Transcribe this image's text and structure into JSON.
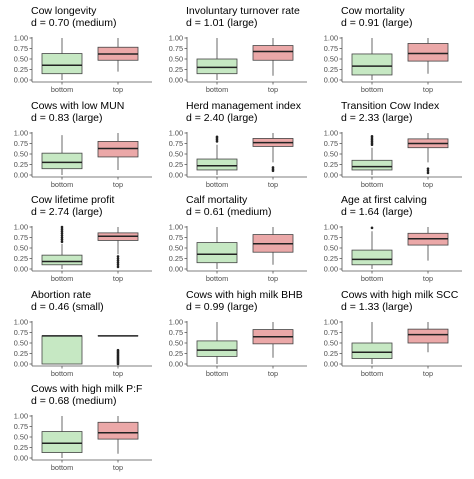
{
  "chart_data": [
    {
      "type": "boxplot",
      "title": "Cow longevity",
      "subtitle": "d = 0.70 (medium)",
      "categories": [
        "bottom",
        "top"
      ],
      "ylim": [
        0,
        1
      ],
      "yticks": [
        "0.00",
        "0.25",
        "0.50",
        "0.75",
        "1.00"
      ],
      "boxes": [
        {
          "name": "bottom",
          "min": 0.0,
          "q1": 0.15,
          "median": 0.35,
          "q3": 0.63,
          "max": 1.0,
          "outliers": []
        },
        {
          "name": "top",
          "min": 0.2,
          "q1": 0.47,
          "median": 0.62,
          "q3": 0.78,
          "max": 1.0,
          "outliers": []
        }
      ]
    },
    {
      "type": "boxplot",
      "title": "Involuntary turnover rate",
      "subtitle": "d = 1.01 (large)",
      "categories": [
        "bottom",
        "top"
      ],
      "ylim": [
        0,
        1
      ],
      "yticks": [
        "0.00",
        "0.25",
        "0.50",
        "0.75",
        "1.00"
      ],
      "boxes": [
        {
          "name": "bottom",
          "min": 0.0,
          "q1": 0.15,
          "median": 0.3,
          "q3": 0.5,
          "max": 1.0,
          "outliers": []
        },
        {
          "name": "top",
          "min": 0.1,
          "q1": 0.47,
          "median": 0.68,
          "q3": 0.82,
          "max": 1.0,
          "outliers": []
        }
      ]
    },
    {
      "type": "boxplot",
      "title": "Cow mortality",
      "subtitle": "d = 0.91 (large)",
      "categories": [
        "bottom",
        "top"
      ],
      "ylim": [
        0,
        1
      ],
      "yticks": [
        "0.00",
        "0.25",
        "0.50",
        "0.75",
        "1.00"
      ],
      "boxes": [
        {
          "name": "bottom",
          "min": 0.0,
          "q1": 0.12,
          "median": 0.33,
          "q3": 0.62,
          "max": 1.0,
          "outliers": []
        },
        {
          "name": "top",
          "min": 0.15,
          "q1": 0.45,
          "median": 0.63,
          "q3": 0.87,
          "max": 1.0,
          "outliers": []
        }
      ]
    },
    {
      "type": "boxplot",
      "title": "Cows with low MUN",
      "subtitle": "d = 0.83 (large)",
      "categories": [
        "bottom",
        "top"
      ],
      "ylim": [
        0,
        1
      ],
      "yticks": [
        "0.00",
        "0.25",
        "0.50",
        "0.75",
        "1.00"
      ],
      "boxes": [
        {
          "name": "bottom",
          "min": 0.0,
          "q1": 0.15,
          "median": 0.3,
          "q3": 0.52,
          "max": 0.95,
          "outliers": []
        },
        {
          "name": "top",
          "min": 0.12,
          "q1": 0.43,
          "median": 0.63,
          "q3": 0.8,
          "max": 1.0,
          "outliers": []
        }
      ]
    },
    {
      "type": "boxplot",
      "title": "Herd management index",
      "subtitle": "d = 2.40 (large)",
      "categories": [
        "bottom",
        "top"
      ],
      "ylim": [
        0,
        1
      ],
      "yticks": [
        "0.00",
        "0.25",
        "0.50",
        "0.75",
        "1.00"
      ],
      "boxes": [
        {
          "name": "bottom",
          "min": 0.0,
          "q1": 0.12,
          "median": 0.22,
          "q3": 0.38,
          "max": 0.72,
          "outliers": [
            0.8,
            0.84,
            0.88,
            0.91
          ]
        },
        {
          "name": "top",
          "min": 0.3,
          "q1": 0.68,
          "median": 0.77,
          "q3": 0.87,
          "max": 1.0,
          "outliers": [
            0.1,
            0.14,
            0.18
          ]
        }
      ]
    },
    {
      "type": "boxplot",
      "title": "Transition Cow Index",
      "subtitle": "d = 2.33 (large)",
      "categories": [
        "bottom",
        "top"
      ],
      "ylim": [
        0,
        1
      ],
      "yticks": [
        "0.00",
        "0.25",
        "0.50",
        "0.75",
        "1.00"
      ],
      "boxes": [
        {
          "name": "bottom",
          "min": 0.0,
          "q1": 0.12,
          "median": 0.2,
          "q3": 0.35,
          "max": 0.65,
          "outliers": [
            0.72,
            0.76,
            0.8,
            0.84,
            0.88,
            0.92
          ]
        },
        {
          "name": "top",
          "min": 0.3,
          "q1": 0.65,
          "median": 0.75,
          "q3": 0.86,
          "max": 1.0,
          "outliers": [
            0.05,
            0.1,
            0.15
          ]
        }
      ]
    },
    {
      "type": "boxplot",
      "title": "Cow lifetime profit",
      "subtitle": "d = 2.74 (large)",
      "categories": [
        "bottom",
        "top"
      ],
      "ylim": [
        0,
        1
      ],
      "yticks": [
        "0.00",
        "0.25",
        "0.50",
        "0.75",
        "1.00"
      ],
      "boxes": [
        {
          "name": "bottom",
          "min": 0.0,
          "q1": 0.1,
          "median": 0.18,
          "q3": 0.33,
          "max": 0.6,
          "outliers": [
            0.65,
            0.7,
            0.75,
            0.8,
            0.85,
            0.9,
            0.95,
            1.0
          ]
        },
        {
          "name": "top",
          "min": 0.35,
          "q1": 0.68,
          "median": 0.78,
          "q3": 0.86,
          "max": 1.0,
          "outliers": [
            0.05,
            0.1,
            0.15,
            0.2,
            0.25,
            0.3
          ]
        }
      ]
    },
    {
      "type": "boxplot",
      "title": "Calf mortality",
      "subtitle": "d = 0.61 (medium)",
      "categories": [
        "bottom",
        "top"
      ],
      "ylim": [
        0,
        1
      ],
      "yticks": [
        "0.00",
        "0.25",
        "0.50",
        "0.75",
        "1.00"
      ],
      "boxes": [
        {
          "name": "bottom",
          "min": 0.0,
          "q1": 0.15,
          "median": 0.35,
          "q3": 0.63,
          "max": 1.0,
          "outliers": []
        },
        {
          "name": "top",
          "min": 0.1,
          "q1": 0.4,
          "median": 0.6,
          "q3": 0.82,
          "max": 1.0,
          "outliers": []
        }
      ]
    },
    {
      "type": "boxplot",
      "title": "Age at first calving",
      "subtitle": "d = 1.64 (large)",
      "categories": [
        "bottom",
        "top"
      ],
      "ylim": [
        0,
        1
      ],
      "yticks": [
        "0.00",
        "0.25",
        "0.50",
        "0.75",
        "1.00"
      ],
      "boxes": [
        {
          "name": "bottom",
          "min": 0.0,
          "q1": 0.1,
          "median": 0.23,
          "q3": 0.45,
          "max": 0.9,
          "outliers": [
            0.98
          ]
        },
        {
          "name": "top",
          "min": 0.2,
          "q1": 0.57,
          "median": 0.72,
          "q3": 0.85,
          "max": 1.0,
          "outliers": []
        }
      ]
    },
    {
      "type": "boxplot",
      "title": "Abortion rate",
      "subtitle": "d = 0.46 (small)",
      "categories": [
        "bottom",
        "top"
      ],
      "ylim": [
        0,
        1
      ],
      "yticks": [
        "0.00",
        "0.25",
        "0.50",
        "0.75",
        "1.00"
      ],
      "boxes": [
        {
          "name": "bottom",
          "min": 0.0,
          "q1": 0.0,
          "median": 0.67,
          "q3": 0.67,
          "max": 0.67,
          "outliers": []
        },
        {
          "name": "top",
          "min": 0.67,
          "q1": 0.67,
          "median": 0.67,
          "q3": 0.67,
          "max": 0.67,
          "outliers": [
            0.0,
            0.03,
            0.06,
            0.09,
            0.12,
            0.15,
            0.18,
            0.21,
            0.24,
            0.27,
            0.3,
            0.33
          ]
        }
      ]
    },
    {
      "type": "boxplot",
      "title": "Cows with high milk BHB",
      "subtitle": "d = 0.99 (large)",
      "categories": [
        "bottom",
        "top"
      ],
      "ylim": [
        0,
        1
      ],
      "yticks": [
        "0.00",
        "0.25",
        "0.50",
        "0.75",
        "1.00"
      ],
      "boxes": [
        {
          "name": "bottom",
          "min": 0.0,
          "q1": 0.18,
          "median": 0.33,
          "q3": 0.55,
          "max": 1.0,
          "outliers": []
        },
        {
          "name": "top",
          "min": 0.15,
          "q1": 0.48,
          "median": 0.65,
          "q3": 0.82,
          "max": 1.0,
          "outliers": []
        }
      ]
    },
    {
      "type": "boxplot",
      "title": "Cows with high milk SCC",
      "subtitle": "d = 1.33 (large)",
      "categories": [
        "bottom",
        "top"
      ],
      "ylim": [
        0,
        1
      ],
      "yticks": [
        "0.00",
        "0.25",
        "0.50",
        "0.75",
        "1.00"
      ],
      "boxes": [
        {
          "name": "bottom",
          "min": 0.0,
          "q1": 0.13,
          "median": 0.28,
          "q3": 0.5,
          "max": 1.0,
          "outliers": []
        },
        {
          "name": "top",
          "min": 0.28,
          "q1": 0.5,
          "median": 0.7,
          "q3": 0.83,
          "max": 1.0,
          "outliers": []
        }
      ]
    },
    {
      "type": "boxplot",
      "title": "Cows with high milk P:F",
      "subtitle": "d = 0.68 (medium)",
      "categories": [
        "bottom",
        "top"
      ],
      "ylim": [
        0,
        1
      ],
      "yticks": [
        "0.00",
        "0.25",
        "0.50",
        "0.75",
        "1.00"
      ],
      "boxes": [
        {
          "name": "bottom",
          "min": 0.0,
          "q1": 0.13,
          "median": 0.35,
          "q3": 0.63,
          "max": 1.0,
          "outliers": []
        },
        {
          "name": "top",
          "min": 0.1,
          "q1": 0.45,
          "median": 0.6,
          "q3": 0.85,
          "max": 1.0,
          "outliers": []
        }
      ]
    }
  ],
  "colors": {
    "bottom_fill": "#c6e8c3",
    "top_fill": "#eba8a8",
    "stroke": "#444444",
    "axis": "#555555",
    "tick_label": "#4d4d4d"
  }
}
